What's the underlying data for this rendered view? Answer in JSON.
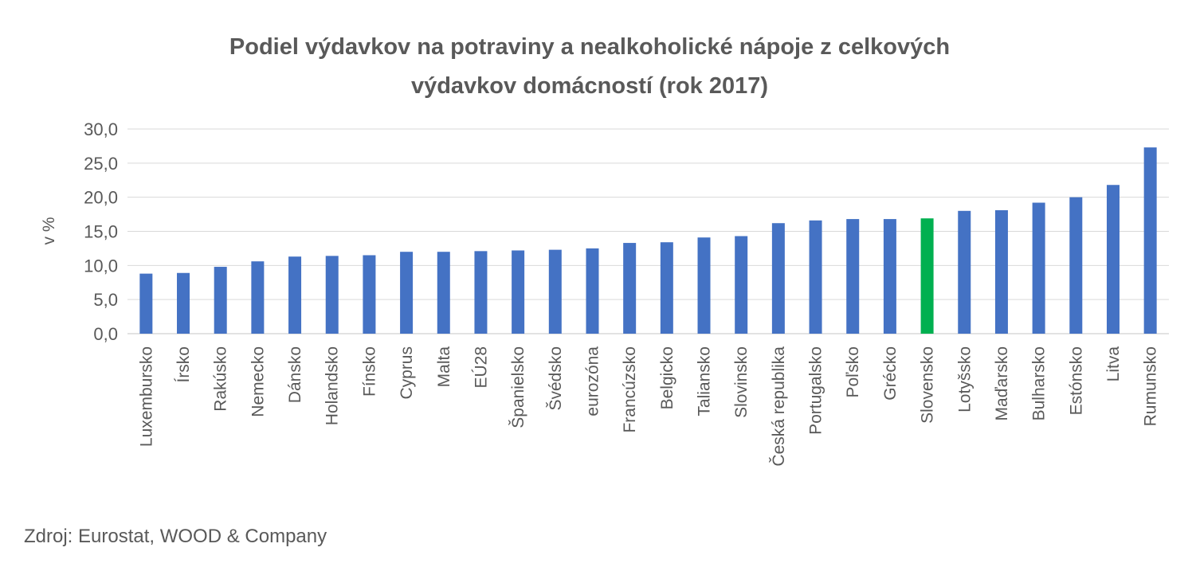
{
  "chart_data": {
    "type": "bar",
    "title_lines": [
      "Podiel výdavkov na potraviny a nealkoholické nápoje z celkových",
      "výdavkov domácností (rok 2017)"
    ],
    "ylabel": "v %",
    "xlabel": "",
    "ylim": [
      0,
      30
    ],
    "yticks": [
      "0,0",
      "5,0",
      "10,0",
      "15,0",
      "20,0",
      "25,0",
      "30,0"
    ],
    "grid": true,
    "legend": "none",
    "categories": [
      "Luxembursko",
      "Írsko",
      "Rakúsko",
      "Nemecko",
      "Dánsko",
      "Holandsko",
      "Fínsko",
      "Cyprus",
      "Malta",
      "EÚ28",
      "Španielsko",
      "Švédsko",
      "eurozóna",
      "Francúzsko",
      "Belgicko",
      "Taliansko",
      "Slovinsko",
      "Česká republika",
      "Portugalsko",
      "Poľsko",
      "Grécko",
      "Slovensko",
      "Lotyšsko",
      "Maďarsko",
      "Bulharsko",
      "Estónsko",
      "Litva",
      "Rumunsko"
    ],
    "values": [
      8.8,
      8.9,
      9.8,
      10.6,
      11.3,
      11.4,
      11.5,
      12.0,
      12.0,
      12.1,
      12.2,
      12.3,
      12.5,
      13.3,
      13.4,
      14.1,
      14.3,
      16.2,
      16.6,
      16.8,
      16.8,
      16.9,
      18.0,
      18.1,
      19.2,
      20.0,
      21.8,
      27.3
    ],
    "highlight": "Slovensko",
    "colors": {
      "bar": "#4472C4",
      "highlight": "#00B050",
      "grid": "#D9D9D9",
      "text": "#595959"
    }
  },
  "source": "Zdroj: Eurostat, WOOD & Company"
}
